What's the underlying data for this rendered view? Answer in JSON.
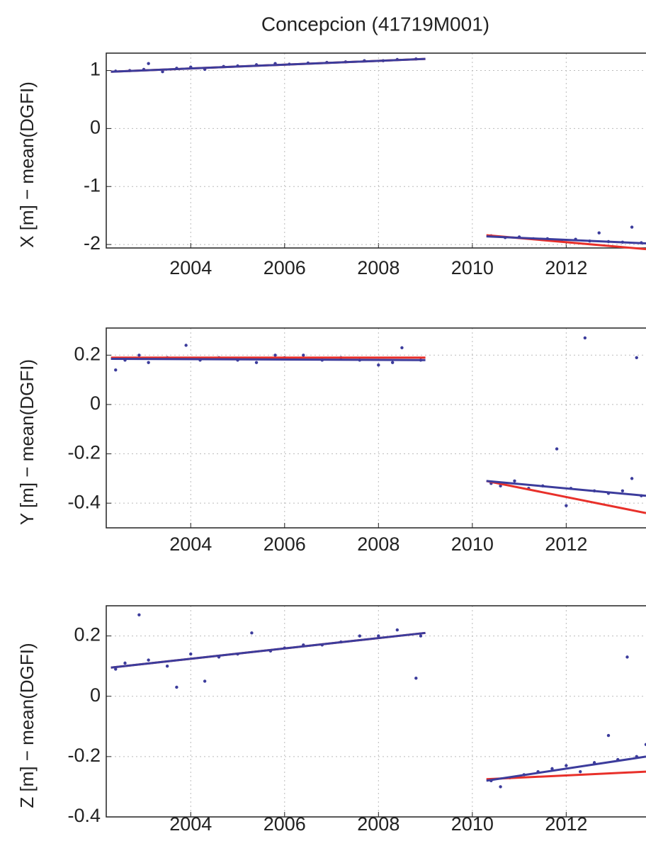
{
  "chart_data": [
    {
      "type": "scatter",
      "title": "Concepcion (41719M001)",
      "ylabel": "X [m] − mean(DGFI)",
      "xlim": [
        2002.2,
        2013.7
      ],
      "ylim": [
        -2.06,
        1.3
      ],
      "xticks": [
        2004,
        2006,
        2008,
        2010,
        2012
      ],
      "yticks": [
        -2,
        -1,
        0,
        1
      ],
      "grid": true,
      "series": [
        {
          "mode": "markers",
          "color": "#3c3c9c",
          "x": [
            2002.4,
            2002.7,
            2003.0,
            2003.1,
            2003.4,
            2003.7,
            2004.0,
            2004.3,
            2004.7,
            2005.0,
            2005.4,
            2005.8,
            2006.1,
            2006.5,
            2006.9,
            2007.3,
            2007.7,
            2008.1,
            2008.4,
            2008.8,
            2010.4,
            2010.7,
            2011.0,
            2011.3,
            2011.6,
            2011.9,
            2012.2,
            2012.5,
            2012.7,
            2012.9,
            2013.2,
            2013.4,
            2013.6
          ],
          "values": [
            0.99,
            1.0,
            1.02,
            1.12,
            0.98,
            1.04,
            1.06,
            1.02,
            1.07,
            1.08,
            1.1,
            1.12,
            1.11,
            1.13,
            1.14,
            1.15,
            1.17,
            1.17,
            1.19,
            1.2,
            -1.85,
            -1.88,
            -1.87,
            -1.9,
            -1.9,
            -1.93,
            -1.91,
            -1.94,
            -1.8,
            -1.95,
            -1.96,
            -1.7,
            -1.97
          ]
        },
        {
          "mode": "line",
          "color": "#e8302a",
          "x": [
            2002.3,
            2009.0,
            null,
            2010.3,
            2013.7
          ],
          "values": [
            0.98,
            1.2,
            null,
            -1.84,
            -2.08
          ]
        },
        {
          "mode": "line",
          "color": "#3c3c9c",
          "x": [
            2002.3,
            2009.0,
            null,
            2010.3,
            2013.7
          ],
          "values": [
            0.98,
            1.2,
            null,
            -1.86,
            -1.98
          ]
        }
      ]
    },
    {
      "type": "scatter",
      "ylabel": "Y [m] − mean(DGFI)",
      "xlim": [
        2002.2,
        2013.7
      ],
      "ylim": [
        -0.5,
        0.31
      ],
      "xticks": [
        2004,
        2006,
        2008,
        2010,
        2012
      ],
      "yticks": [
        -0.4,
        -0.2,
        0,
        0.2
      ],
      "grid": true,
      "series": [
        {
          "mode": "markers",
          "color": "#3c3c9c",
          "x": [
            2002.4,
            2002.6,
            2002.9,
            2003.1,
            2003.5,
            2003.9,
            2004.2,
            2004.6,
            2005.0,
            2005.4,
            2005.8,
            2006.0,
            2006.4,
            2006.8,
            2007.2,
            2007.6,
            2008.0,
            2008.3,
            2008.5,
            2008.9,
            2010.4,
            2010.6,
            2010.9,
            2011.2,
            2011.5,
            2011.8,
            2012.0,
            2012.1,
            2012.4,
            2012.6,
            2012.9,
            2013.2,
            2013.4,
            2013.5,
            2013.6
          ],
          "values": [
            0.14,
            0.18,
            0.2,
            0.17,
            0.19,
            0.24,
            0.18,
            0.19,
            0.18,
            0.17,
            0.2,
            0.19,
            0.2,
            0.18,
            0.19,
            0.18,
            0.16,
            0.17,
            0.23,
            0.18,
            -0.32,
            -0.33,
            -0.31,
            -0.34,
            -0.33,
            -0.18,
            -0.41,
            -0.34,
            0.27,
            -0.35,
            -0.36,
            -0.35,
            -0.3,
            0.19,
            -0.37
          ]
        },
        {
          "mode": "line",
          "color": "#e8302a",
          "x": [
            2002.3,
            2009.0,
            null,
            2010.3,
            2013.7
          ],
          "values": [
            0.19,
            0.19,
            null,
            -0.31,
            -0.44
          ]
        },
        {
          "mode": "line",
          "color": "#3c3c9c",
          "x": [
            2002.3,
            2009.0,
            null,
            2010.3,
            2013.7
          ],
          "values": [
            0.185,
            0.18,
            null,
            -0.31,
            -0.37
          ]
        }
      ]
    },
    {
      "type": "scatter",
      "ylabel": "Z [m] − mean(DGFI)",
      "xlim": [
        2002.2,
        2013.7
      ],
      "ylim": [
        -0.4,
        0.3
      ],
      "xticks": [
        2004,
        2006,
        2008,
        2010,
        2012
      ],
      "yticks": [
        -0.4,
        -0.2,
        0,
        0.2
      ],
      "grid": true,
      "series": [
        {
          "mode": "markers",
          "color": "#3c3c9c",
          "x": [
            2002.4,
            2002.6,
            2002.9,
            2003.1,
            2003.5,
            2003.7,
            2004.0,
            2004.3,
            2004.6,
            2005.0,
            2005.3,
            2005.7,
            2006.0,
            2006.4,
            2006.8,
            2007.2,
            2007.6,
            2008.0,
            2008.4,
            2008.8,
            2008.9,
            2010.4,
            2010.6,
            2010.8,
            2011.1,
            2011.4,
            2011.7,
            2012.0,
            2012.3,
            2012.6,
            2012.9,
            2013.1,
            2013.3,
            2013.5,
            2013.7
          ],
          "values": [
            0.09,
            0.11,
            0.27,
            0.12,
            0.1,
            0.03,
            0.14,
            0.05,
            0.13,
            0.14,
            0.21,
            0.15,
            0.16,
            0.17,
            0.17,
            0.18,
            0.2,
            0.2,
            0.22,
            0.06,
            0.2,
            -0.28,
            -0.3,
            -0.27,
            -0.26,
            -0.25,
            -0.24,
            -0.23,
            -0.25,
            -0.22,
            -0.13,
            -0.21,
            0.13,
            -0.2,
            -0.16
          ]
        },
        {
          "mode": "line",
          "color": "#e8302a",
          "x": [
            2002.3,
            2009.0,
            null,
            2010.3,
            2013.7
          ],
          "values": [
            0.095,
            0.21,
            null,
            -0.275,
            -0.25
          ]
        },
        {
          "mode": "line",
          "color": "#3c3c9c",
          "x": [
            2002.3,
            2009.0,
            null,
            2010.3,
            2013.7
          ],
          "values": [
            0.095,
            0.21,
            null,
            -0.28,
            -0.2
          ]
        }
      ]
    }
  ]
}
